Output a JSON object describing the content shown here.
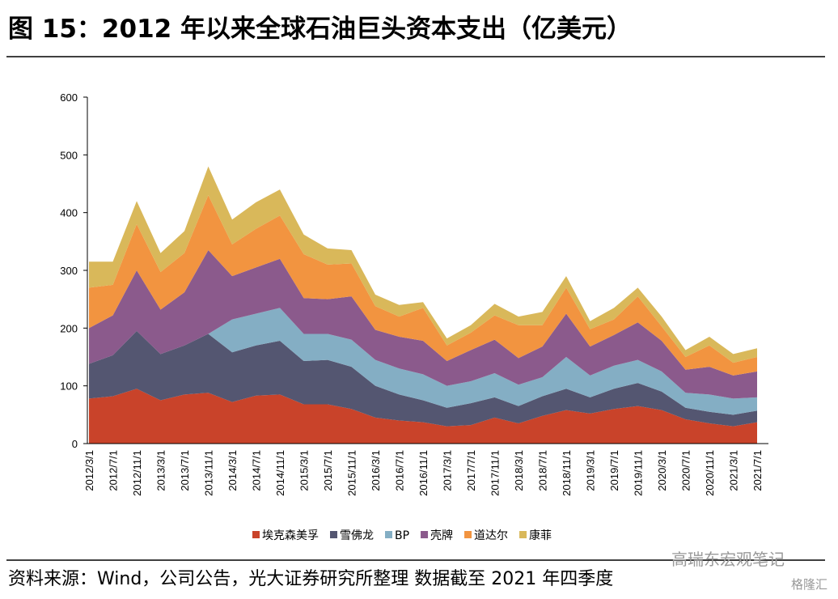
{
  "chart_data": {
    "type": "stacked_area",
    "title": "图 15：2012 年以来全球石油巨头资本支出（亿美元）",
    "source": "资料来源：Wind，公司公告，光大证券研究所整理  数据截至 2021 年四季度",
    "watermark": "高瑞东宏观笔记",
    "watermark2": "格隆汇",
    "categories": [
      "2012/3/1",
      "2012/7/1",
      "2012/11/1",
      "2013/3/1",
      "2013/7/1",
      "2013/11/1",
      "2014/3/1",
      "2014/7/1",
      "2014/11/1",
      "2015/3/1",
      "2015/7/1",
      "2015/11/1",
      "2016/3/1",
      "2016/7/1",
      "2016/11/1",
      "2017/3/1",
      "2017/7/1",
      "2017/11/1",
      "2018/3/1",
      "2018/7/1",
      "2018/11/1",
      "2019/3/1",
      "2019/7/1",
      "2019/11/1",
      "2020/3/1",
      "2020/7/1",
      "2020/11/1",
      "2021/3/1",
      "2021/7/1"
    ],
    "series": [
      {
        "name": "埃克森美孚",
        "color": "#c9432a",
        "values": [
          78,
          82,
          95,
          75,
          85,
          88,
          72,
          83,
          85,
          68,
          68,
          60,
          45,
          40,
          37,
          30,
          32,
          45,
          35,
          48,
          58,
          52,
          60,
          65,
          58,
          42,
          35,
          30,
          37
        ]
      },
      {
        "name": "雪佛龙",
        "color": "#545671",
        "values": [
          60,
          71,
          100,
          80,
          85,
          102,
          86,
          87,
          93,
          75,
          77,
          73,
          55,
          45,
          38,
          32,
          38,
          35,
          30,
          34,
          37,
          28,
          35,
          40,
          32,
          20,
          20,
          20,
          20
        ]
      },
      {
        "name": "BP",
        "color": "#84aec4",
        "values": [
          0,
          0,
          0,
          0,
          0,
          0,
          57,
          55,
          57,
          47,
          45,
          47,
          45,
          45,
          45,
          38,
          38,
          42,
          37,
          33,
          55,
          38,
          40,
          40,
          35,
          26,
          30,
          28,
          23
        ]
      },
      {
        "name": "壳牌",
        "color": "#8b5a8c",
        "values": [
          62,
          69,
          105,
          77,
          92,
          145,
          75,
          80,
          85,
          62,
          60,
          75,
          52,
          55,
          58,
          43,
          54,
          58,
          46,
          53,
          75,
          50,
          53,
          65,
          53,
          40,
          48,
          40,
          45
        ]
      },
      {
        "name": "道达尔",
        "color": "#f29440",
        "values": [
          70,
          53,
          80,
          65,
          68,
          95,
          55,
          67,
          75,
          76,
          60,
          57,
          41,
          35,
          57,
          27,
          30,
          42,
          57,
          37,
          45,
          30,
          27,
          45,
          25,
          22,
          37,
          22,
          25
        ]
      },
      {
        "name": "康菲",
        "color": "#d9b85a",
        "values": [
          45,
          40,
          40,
          33,
          38,
          50,
          43,
          46,
          45,
          34,
          28,
          23,
          20,
          20,
          10,
          12,
          13,
          20,
          15,
          23,
          20,
          14,
          20,
          15,
          17,
          12,
          15,
          15,
          15
        ]
      }
    ],
    "ylim": [
      0,
      600
    ],
    "yticks": [
      0,
      100,
      200,
      300,
      400,
      500,
      600
    ],
    "legend": "bottom"
  }
}
